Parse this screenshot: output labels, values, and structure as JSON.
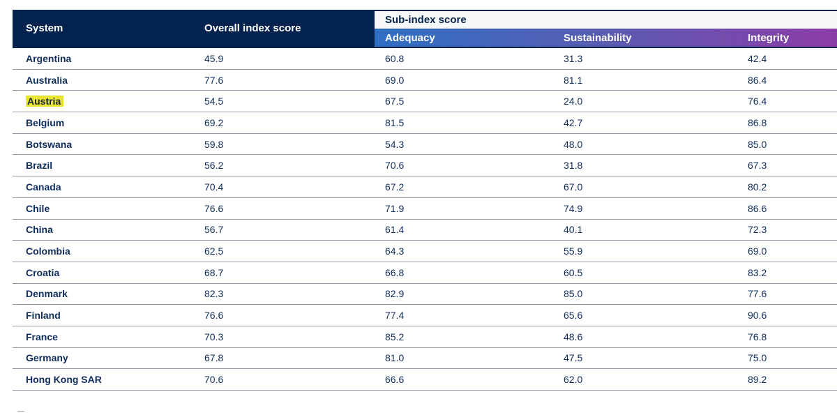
{
  "chart_data": {
    "type": "table",
    "title": "",
    "columns": [
      "System",
      "Overall index score",
      "Adequacy",
      "Sustainability",
      "Integrity"
    ],
    "column_groups": [
      {
        "label": "Sub-index score",
        "columns": [
          "Adequacy",
          "Sustainability",
          "Integrity"
        ]
      }
    ],
    "highlighted_row": "Austria",
    "rows": [
      [
        "Argentina",
        45.9,
        60.8,
        31.3,
        42.4
      ],
      [
        "Australia",
        77.6,
        69.0,
        81.1,
        86.4
      ],
      [
        "Austria",
        54.5,
        67.5,
        24.0,
        76.4
      ],
      [
        "Belgium",
        69.2,
        81.5,
        42.7,
        86.8
      ],
      [
        "Botswana",
        59.8,
        54.3,
        48.0,
        85.0
      ],
      [
        "Brazil",
        56.2,
        70.6,
        31.8,
        67.3
      ],
      [
        "Canada",
        70.4,
        67.2,
        67.0,
        80.2
      ],
      [
        "Chile",
        76.6,
        71.9,
        74.9,
        86.6
      ],
      [
        "China",
        56.7,
        61.4,
        40.1,
        72.3
      ],
      [
        "Colombia",
        62.5,
        64.3,
        55.9,
        69.0
      ],
      [
        "Croatia",
        68.7,
        66.8,
        60.5,
        83.2
      ],
      [
        "Denmark",
        82.3,
        82.9,
        85.0,
        77.6
      ],
      [
        "Finland",
        76.6,
        77.4,
        65.6,
        90.6
      ],
      [
        "France",
        70.3,
        85.2,
        48.6,
        76.8
      ],
      [
        "Germany",
        67.8,
        81.0,
        47.5,
        75.0
      ],
      [
        "Hong Kong SAR",
        70.6,
        66.6,
        62.0,
        89.2
      ]
    ]
  },
  "table": {
    "header": {
      "system": "System",
      "overall": "Overall index score",
      "subindex_group": "Sub-index score",
      "sub_columns": [
        "Adequacy",
        "Sustainability",
        "Integrity"
      ]
    },
    "rows": [
      {
        "system": "Argentina",
        "overall": "45.9",
        "adequacy": "60.8",
        "sustainability": "31.3",
        "integrity": "42.4",
        "highlighted": false
      },
      {
        "system": "Australia",
        "overall": "77.6",
        "adequacy": "69.0",
        "sustainability": "81.1",
        "integrity": "86.4",
        "highlighted": false
      },
      {
        "system": "Austria",
        "overall": "54.5",
        "adequacy": "67.5",
        "sustainability": "24.0",
        "integrity": "76.4",
        "highlighted": true
      },
      {
        "system": "Belgium",
        "overall": "69.2",
        "adequacy": "81.5",
        "sustainability": "42.7",
        "integrity": "86.8",
        "highlighted": false
      },
      {
        "system": "Botswana",
        "overall": "59.8",
        "adequacy": "54.3",
        "sustainability": "48.0",
        "integrity": "85.0",
        "highlighted": false
      },
      {
        "system": "Brazil",
        "overall": "56.2",
        "adequacy": "70.6",
        "sustainability": "31.8",
        "integrity": "67.3",
        "highlighted": false
      },
      {
        "system": "Canada",
        "overall": "70.4",
        "adequacy": "67.2",
        "sustainability": "67.0",
        "integrity": "80.2",
        "highlighted": false
      },
      {
        "system": "Chile",
        "overall": "76.6",
        "adequacy": "71.9",
        "sustainability": "74.9",
        "integrity": "86.6",
        "highlighted": false
      },
      {
        "system": "China",
        "overall": "56.7",
        "adequacy": "61.4",
        "sustainability": "40.1",
        "integrity": "72.3",
        "highlighted": false
      },
      {
        "system": "Colombia",
        "overall": "62.5",
        "adequacy": "64.3",
        "sustainability": "55.9",
        "integrity": "69.0",
        "highlighted": false
      },
      {
        "system": "Croatia",
        "overall": "68.7",
        "adequacy": "66.8",
        "sustainability": "60.5",
        "integrity": "83.2",
        "highlighted": false
      },
      {
        "system": "Denmark",
        "overall": "82.3",
        "adequacy": "82.9",
        "sustainability": "85.0",
        "integrity": "77.6",
        "highlighted": false
      },
      {
        "system": "Finland",
        "overall": "76.6",
        "adequacy": "77.4",
        "sustainability": "65.6",
        "integrity": "90.6",
        "highlighted": false
      },
      {
        "system": "France",
        "overall": "70.3",
        "adequacy": "85.2",
        "sustainability": "48.6",
        "integrity": "76.8",
        "highlighted": false
      },
      {
        "system": "Germany",
        "overall": "67.8",
        "adequacy": "81.0",
        "sustainability": "47.5",
        "integrity": "75.0",
        "highlighted": false
      },
      {
        "system": "Hong Kong SAR",
        "overall": "70.6",
        "adequacy": "66.6",
        "sustainability": "62.0",
        "integrity": "89.2",
        "highlighted": false
      }
    ]
  },
  "colors": {
    "header_navy": "#03234e",
    "text_navy": "#0f2d5a",
    "row_divider": "#8e9aa7",
    "gradient_start": "#2e6fc3",
    "gradient_mid": "#5a5cb2",
    "gradient_end": "#8c3ca7",
    "highlight_yellow": "#e9e42f",
    "subindex_row_bg": "#f6f7f8"
  }
}
